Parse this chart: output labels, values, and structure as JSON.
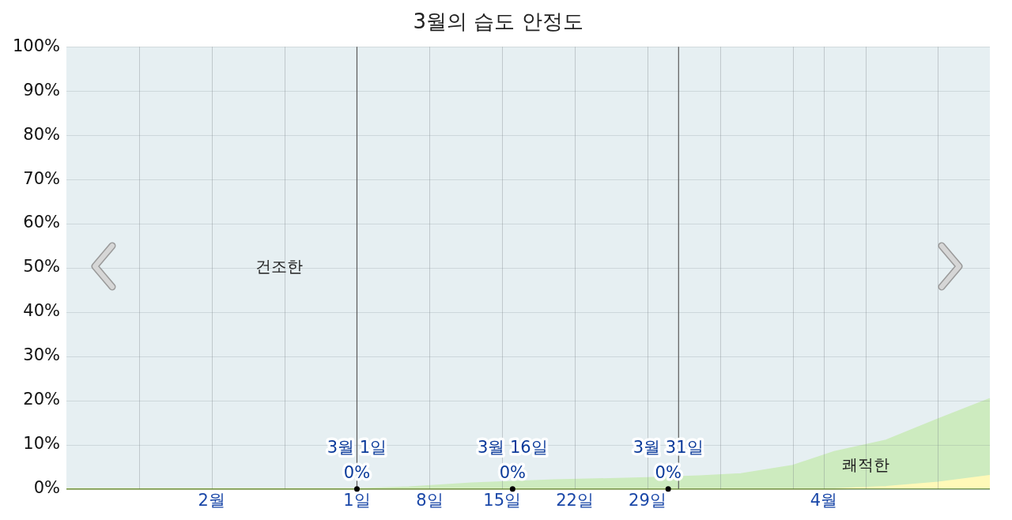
{
  "chart_data": {
    "type": "area",
    "title": "3월의 습도 안정도",
    "stacked": true,
    "marker": "none",
    "legend": false,
    "grid": true,
    "x": [
      "--02-01",
      "--03-01",
      "--03-06",
      "--03-12",
      "--03-20",
      "--03-29",
      "--04-03",
      "--04-07",
      "--04-12",
      "--04-16",
      "--04-21",
      "--04-26",
      "--05-01"
    ],
    "series": [
      {
        "color": "#fff9b8",
        "values": [
          0,
          0,
          0,
          0,
          0,
          0,
          0,
          0,
          0,
          0,
          0.5,
          1.5,
          3
        ]
      },
      {
        "name": "쾌적한",
        "color": "#cdebbf",
        "values": [
          0,
          0,
          0.4,
          1.3,
          2,
          2.5,
          2.9,
          3.4,
          5.3,
          8.4,
          10.5,
          14.3,
          17.4
        ]
      }
    ],
    "bands": [
      {
        "axis": "y",
        "from": 0,
        "to": 100,
        "label": "건조한",
        "color": "#e6eff2"
      }
    ],
    "xlim": [
      "--02-01",
      "--05-01"
    ],
    "xticks": [
      {
        "value": "--02-08",
        "label": null
      },
      {
        "value": "--02-15",
        "label": "2월"
      },
      {
        "value": "--02-22",
        "label": null
      },
      {
        "value": "--03-01",
        "label": "1일"
      },
      {
        "value": "--03-08",
        "label": "8일"
      },
      {
        "value": "--03-15",
        "label": "15일"
      },
      {
        "value": "--03-22",
        "label": "22일"
      },
      {
        "value": "--03-29",
        "label": "29일"
      },
      {
        "value": "--04-05",
        "label": null
      },
      {
        "value": "--04-12",
        "label": null
      },
      {
        "value": "--04-15",
        "label": "4월"
      },
      {
        "value": "--04-19",
        "label": null
      },
      {
        "value": "--04-26",
        "label": null
      }
    ],
    "ylim": [
      0,
      100
    ],
    "yticks": [
      {
        "value": 0,
        "label": "0%"
      },
      {
        "value": 10,
        "label": "10%"
      },
      {
        "value": 20,
        "label": "20%"
      },
      {
        "value": 30,
        "label": "30%"
      },
      {
        "value": 40,
        "label": "40%"
      },
      {
        "value": 50,
        "label": "50%"
      },
      {
        "value": 60,
        "label": "60%"
      },
      {
        "value": 70,
        "label": "70%"
      },
      {
        "value": 80,
        "label": "80%"
      },
      {
        "value": 90,
        "label": "90%"
      },
      {
        "value": 100,
        "label": "100%"
      }
    ],
    "ref_lines": [
      {
        "axis": "x",
        "value": "--03-01",
        "color": "#5a5a5a"
      },
      {
        "axis": "x",
        "value": "--04-01",
        "color": "#5a5a5a"
      }
    ],
    "annotations": [
      {
        "text": "3월 1일\n0%",
        "x": "--03-01",
        "y": 0
      },
      {
        "text": "3월 16일\n0%",
        "x": "--03-16",
        "y": 0
      },
      {
        "text": "3월 31일\n0%",
        "x": "--03-31",
        "y": 0
      }
    ]
  }
}
